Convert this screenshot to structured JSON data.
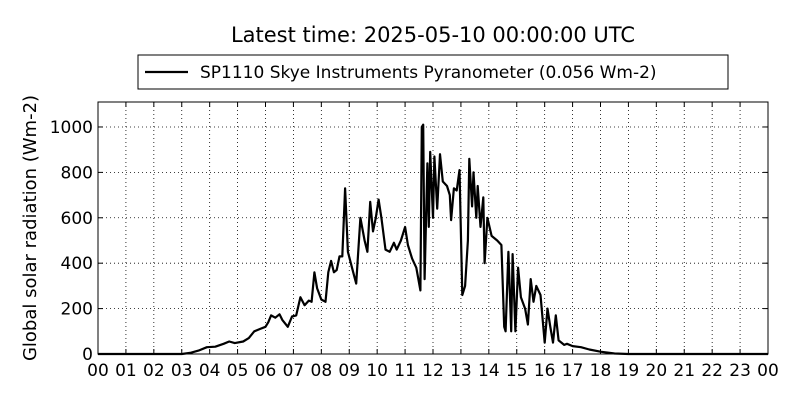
{
  "chart_data": {
    "type": "line",
    "title": "Latest time: 2025-05-10 00:00:00 UTC",
    "y_label": "Global solar radiation (Wm-2)",
    "legend": "upper center",
    "grid": true,
    "xlim": [
      0,
      24
    ],
    "ylim": [
      0,
      1110
    ],
    "yticks": [
      0,
      200,
      400,
      600,
      800,
      1000
    ],
    "xticks": [
      {
        "value": 0,
        "label": "00"
      },
      {
        "value": 1,
        "label": "01"
      },
      {
        "value": 2,
        "label": "02"
      },
      {
        "value": 3,
        "label": "03"
      },
      {
        "value": 4,
        "label": "04"
      },
      {
        "value": 5,
        "label": "05"
      },
      {
        "value": 6,
        "label": "06"
      },
      {
        "value": 7,
        "label": "07"
      },
      {
        "value": 8,
        "label": "08"
      },
      {
        "value": 9,
        "label": "09"
      },
      {
        "value": 10,
        "label": "10"
      },
      {
        "value": 11,
        "label": "11"
      },
      {
        "value": 12,
        "label": "12"
      },
      {
        "value": 13,
        "label": "13"
      },
      {
        "value": 14,
        "label": "14"
      },
      {
        "value": 15,
        "label": "15"
      },
      {
        "value": 16,
        "label": "16"
      },
      {
        "value": 17,
        "label": "17"
      },
      {
        "value": 18,
        "label": "18"
      },
      {
        "value": 19,
        "label": "19"
      },
      {
        "value": 20,
        "label": "20"
      },
      {
        "value": 21,
        "label": "21"
      },
      {
        "value": 22,
        "label": "22"
      },
      {
        "value": 23,
        "label": "23"
      },
      {
        "value": 24,
        "label": "00"
      }
    ],
    "x": [
      0,
      3,
      3.3,
      3.6,
      3.9,
      4.2,
      4.5,
      4.7,
      4.9,
      5.2,
      5.4,
      5.6,
      5.8,
      6.0,
      6.1,
      6.2,
      6.35,
      6.5,
      6.6,
      6.8,
      6.95,
      7.1,
      7.25,
      7.4,
      7.55,
      7.65,
      7.75,
      7.85,
      8.0,
      8.15,
      8.25,
      8.35,
      8.45,
      8.55,
      8.65,
      8.75,
      8.85,
      8.95,
      9.1,
      9.25,
      9.4,
      9.55,
      9.65,
      9.75,
      9.85,
      9.95,
      10.05,
      10.15,
      10.3,
      10.45,
      10.6,
      10.7,
      10.85,
      11.0,
      11.1,
      11.25,
      11.4,
      11.55,
      11.6,
      11.65,
      11.7,
      11.8,
      11.85,
      11.9,
      12.0,
      12.05,
      12.15,
      12.25,
      12.35,
      12.5,
      12.6,
      12.65,
      12.75,
      12.85,
      12.95,
      13.05,
      13.15,
      13.25,
      13.3,
      13.4,
      13.45,
      13.55,
      13.6,
      13.7,
      13.8,
      13.85,
      13.95,
      14.1,
      14.3,
      14.45,
      14.55,
      14.6,
      14.7,
      14.8,
      14.85,
      14.95,
      15.05,
      15.15,
      15.3,
      15.4,
      15.5,
      15.6,
      15.7,
      15.85,
      16.0,
      16.1,
      16.2,
      16.3,
      16.4,
      16.5,
      16.6,
      16.7,
      16.8,
      17.0,
      17.3,
      17.6,
      18.0,
      18.5,
      19,
      24
    ],
    "series": [
      {
        "name": "SP1110 Skye Instruments Pyranometer (0.056 Wm-2)",
        "color": "#000000",
        "values": [
          0,
          0,
          5,
          15,
          30,
          32,
          45,
          55,
          48,
          55,
          70,
          100,
          110,
          120,
          140,
          170,
          160,
          175,
          150,
          120,
          165,
          170,
          250,
          215,
          235,
          230,
          360,
          290,
          240,
          230,
          360,
          410,
          360,
          370,
          430,
          430,
          730,
          450,
          380,
          310,
          600,
          500,
          450,
          670,
          540,
          600,
          680,
          600,
          460,
          450,
          490,
          460,
          500,
          560,
          480,
          420,
          380,
          280,
          1000,
          1010,
          330,
          840,
          560,
          890,
          600,
          870,
          640,
          880,
          760,
          740,
          700,
          590,
          730,
          720,
          810,
          260,
          300,
          500,
          860,
          650,
          800,
          600,
          740,
          560,
          690,
          400,
          600,
          520,
          500,
          480,
          120,
          100,
          450,
          100,
          440,
          100,
          380,
          250,
          200,
          130,
          330,
          230,
          300,
          260,
          50,
          200,
          120,
          50,
          170,
          60,
          50,
          40,
          45,
          35,
          30,
          20,
          10,
          2,
          0,
          0
        ]
      }
    ]
  }
}
